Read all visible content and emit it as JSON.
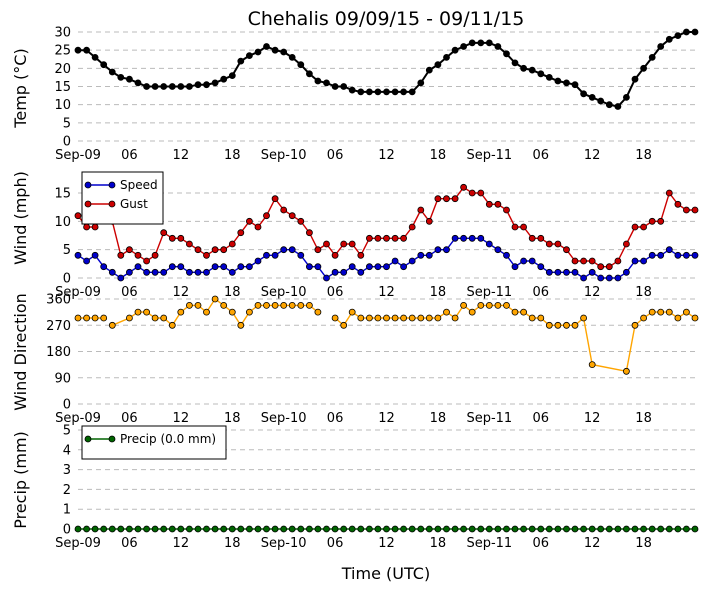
{
  "title": "Chehalis 09/09/15 - 09/11/15",
  "xlabel": "Time (UTC)",
  "x_tick_labels": [
    "Sep-09",
    "06",
    "12",
    "18",
    "Sep-10",
    "06",
    "12",
    "18",
    "Sep-11",
    "06",
    "12",
    "18"
  ],
  "x_tick_hours": [
    0,
    6,
    12,
    18,
    24,
    30,
    36,
    42,
    48,
    54,
    60,
    66
  ],
  "x_range_hours": [
    0,
    72
  ],
  "chart_data": [
    {
      "type": "line",
      "ylabel": "Temp (°C)",
      "ylim": [
        0,
        30
      ],
      "yticks": [
        0,
        5,
        10,
        15,
        20,
        25,
        30
      ],
      "grid": "dashed-horizontal",
      "x_hours": [
        0,
        1,
        2,
        3,
        4,
        5,
        6,
        7,
        8,
        9,
        10,
        11,
        12,
        13,
        14,
        15,
        16,
        17,
        18,
        19,
        20,
        21,
        22,
        23,
        24,
        25,
        26,
        27,
        28,
        29,
        30,
        31,
        32,
        33,
        34,
        35,
        36,
        37,
        38,
        39,
        40,
        41,
        42,
        43,
        44,
        45,
        46,
        47,
        48,
        49,
        50,
        51,
        52,
        53,
        54,
        55,
        56,
        57,
        58,
        59,
        60,
        61,
        62,
        63,
        64,
        65,
        66,
        67,
        68,
        69,
        70,
        71,
        72
      ],
      "series": [
        {
          "color": "#000000",
          "values": [
            25,
            25,
            23,
            21,
            19,
            17.5,
            17,
            16,
            15,
            15,
            15,
            15,
            15,
            15,
            15.5,
            15.5,
            16,
            17,
            18,
            22,
            23.5,
            24.5,
            26,
            25,
            24.5,
            23,
            21,
            18.5,
            16.5,
            16,
            15,
            15,
            14,
            13.5,
            13.5,
            13.5,
            13.5,
            13.5,
            13.5,
            13.5,
            16,
            19.5,
            21,
            23,
            25,
            26,
            27,
            27,
            27,
            26,
            24,
            21.5,
            20,
            19.5,
            18.5,
            17.5,
            16.5,
            16,
            15.5,
            13,
            12,
            11,
            10,
            9.5,
            12,
            17,
            20,
            23,
            26,
            28,
            29,
            30,
            30
          ]
        }
      ]
    },
    {
      "type": "line",
      "ylabel": "Wind (mph)",
      "ylim": [
        0,
        18
      ],
      "yticks": [
        0,
        5,
        10,
        15
      ],
      "grid": "dashed-horizontal",
      "legend_position": "top-left",
      "x_hours": [
        0,
        1,
        2,
        3,
        4,
        5,
        6,
        7,
        8,
        9,
        10,
        11,
        12,
        13,
        14,
        15,
        16,
        17,
        18,
        19,
        20,
        21,
        22,
        23,
        24,
        25,
        26,
        27,
        28,
        29,
        30,
        31,
        32,
        33,
        34,
        35,
        36,
        37,
        38,
        39,
        40,
        41,
        42,
        43,
        44,
        45,
        46,
        47,
        48,
        49,
        50,
        51,
        52,
        53,
        54,
        55,
        56,
        57,
        58,
        59,
        60,
        61,
        62,
        63,
        64,
        65,
        66,
        67,
        68,
        69,
        70,
        71,
        72
      ],
      "series": [
        {
          "name": "Speed",
          "color": "#0000cc",
          "values": [
            4,
            3,
            4,
            2,
            1,
            0,
            1,
            2,
            1,
            1,
            1,
            2,
            2,
            1,
            1,
            1,
            2,
            2,
            1,
            2,
            2,
            3,
            4,
            4,
            5,
            5,
            4,
            2,
            2,
            0,
            1,
            1,
            2,
            1,
            2,
            2,
            2,
            3,
            2,
            3,
            4,
            4,
            5,
            5,
            7,
            7,
            7,
            7,
            6,
            5,
            4,
            2,
            3,
            3,
            2,
            1,
            1,
            1,
            1,
            0,
            1,
            0,
            0,
            0,
            1,
            3,
            3,
            4,
            4,
            5,
            4,
            4,
            4
          ]
        },
        {
          "name": "Gust",
          "color": "#cc0000",
          "values": [
            11,
            9,
            9,
            11,
            10,
            4,
            5,
            4,
            3,
            4,
            8,
            7,
            7,
            6,
            5,
            4,
            5,
            5,
            6,
            8,
            10,
            9,
            11,
            14,
            12,
            11,
            10,
            8,
            5,
            6,
            4,
            6,
            6,
            4,
            7,
            7,
            7,
            7,
            7,
            9,
            12,
            10,
            14,
            14,
            14,
            16,
            15,
            15,
            13,
            13,
            12,
            9,
            9,
            7,
            7,
            6,
            6,
            5,
            3,
            3,
            3,
            2,
            2,
            3,
            6,
            9,
            9,
            10,
            10,
            15,
            13,
            12,
            12
          ]
        }
      ]
    },
    {
      "type": "line",
      "ylabel": "Wind Direction",
      "ylim": [
        0,
        360
      ],
      "yticks": [
        0,
        90,
        180,
        270,
        360
      ],
      "grid": "dashed-horizontal",
      "x_hours": [
        0,
        1,
        2,
        3,
        4,
        6,
        7,
        8,
        9,
        10,
        11,
        12,
        13,
        14,
        15,
        16,
        17,
        18,
        19,
        20,
        21,
        22,
        23,
        24,
        25,
        26,
        27,
        28,
        30,
        31,
        32,
        33,
        34,
        35,
        36,
        37,
        38,
        39,
        40,
        41,
        42,
        43,
        44,
        45,
        46,
        47,
        48,
        49,
        50,
        51,
        52,
        53,
        54,
        55,
        56,
        57,
        58,
        59,
        60,
        64,
        65,
        66,
        67,
        68,
        69,
        70,
        71,
        72
      ],
      "series": [
        {
          "color": "#ffa500",
          "values": [
            295,
            295,
            295,
            295,
            270,
            295,
            315,
            315,
            295,
            295,
            270,
            315,
            338,
            338,
            315,
            360,
            338,
            315,
            270,
            315,
            338,
            338,
            338,
            338,
            338,
            338,
            338,
            315,
            295,
            270,
            315,
            295,
            295,
            295,
            295,
            295,
            295,
            295,
            295,
            295,
            295,
            315,
            295,
            338,
            315,
            338,
            338,
            338,
            338,
            315,
            315,
            295,
            295,
            270,
            270,
            270,
            270,
            295,
            135,
            112,
            270,
            295,
            315,
            315,
            315,
            295,
            315,
            295
          ]
        }
      ],
      "gaps_after_index": [
        3,
        27
      ]
    },
    {
      "type": "line",
      "ylabel": "Precip (mm)",
      "ylim": [
        0,
        5
      ],
      "yticks": [
        0,
        1,
        2,
        3,
        4,
        5
      ],
      "grid": "dashed-horizontal",
      "legend_position": "top-left",
      "x_hours": [
        0,
        1,
        2,
        3,
        4,
        5,
        6,
        7,
        8,
        9,
        10,
        11,
        12,
        13,
        14,
        15,
        16,
        17,
        18,
        19,
        20,
        21,
        22,
        23,
        24,
        25,
        26,
        27,
        28,
        29,
        30,
        31,
        32,
        33,
        34,
        35,
        36,
        37,
        38,
        39,
        40,
        41,
        42,
        43,
        44,
        45,
        46,
        47,
        48,
        49,
        50,
        51,
        52,
        53,
        54,
        55,
        56,
        57,
        58,
        59,
        60,
        61,
        62,
        63,
        64,
        65,
        66,
        67,
        68,
        69,
        70,
        71,
        72
      ],
      "series": [
        {
          "name": "Precip (0.0 mm)",
          "color": "#006400",
          "values": [
            0,
            0,
            0,
            0,
            0,
            0,
            0,
            0,
            0,
            0,
            0,
            0,
            0,
            0,
            0,
            0,
            0,
            0,
            0,
            0,
            0,
            0,
            0,
            0,
            0,
            0,
            0,
            0,
            0,
            0,
            0,
            0,
            0,
            0,
            0,
            0,
            0,
            0,
            0,
            0,
            0,
            0,
            0,
            0,
            0,
            0,
            0,
            0,
            0,
            0,
            0,
            0,
            0,
            0,
            0,
            0,
            0,
            0,
            0,
            0,
            0,
            0,
            0,
            0,
            0,
            0,
            0,
            0,
            0,
            0,
            0,
            0,
            0
          ]
        }
      ]
    }
  ]
}
